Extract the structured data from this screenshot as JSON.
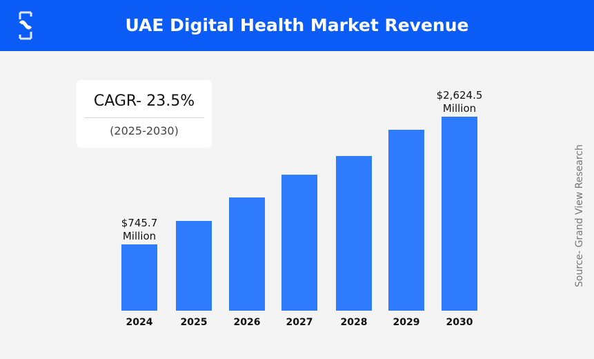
{
  "header": {
    "title": "UAE Digital Health Market Revenue",
    "brand_color": "#0b5cf7"
  },
  "cagr": {
    "label": "CAGR- 23.5%",
    "period": "(2025-2030)"
  },
  "source": "Source- Grand View Research",
  "chart_data": {
    "type": "bar",
    "title": "UAE Digital Health Market Revenue",
    "categories": [
      "2024",
      "2025",
      "2026",
      "2027",
      "2028",
      "2029",
      "2030"
    ],
    "values": [
      745.7,
      1091,
      1436,
      1771,
      2046,
      2432,
      2624.5
    ],
    "unit": "USD Million",
    "data_labels": [
      {
        "index": 0,
        "line1": "$745.7",
        "line2": "Million"
      },
      {
        "index": 6,
        "line1": "$2,624.5",
        "line2": "Million"
      }
    ],
    "bar_color": "#2e7bfd",
    "grid": false,
    "xlabel": "",
    "ylabel": ""
  }
}
